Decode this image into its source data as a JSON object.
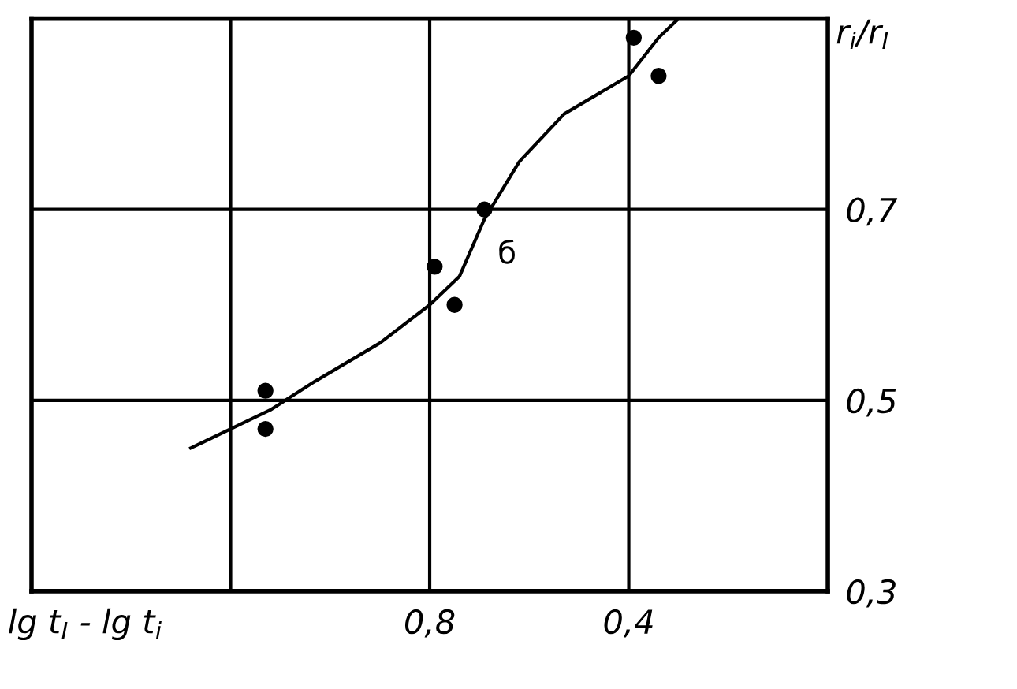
{
  "chart_data": {
    "type": "scatter",
    "xlabel": "lg t$_{I}$ - lg t$_{i}$",
    "ylabel": "r$_{i}$/r$_{I}$",
    "series": [
      {
        "color": "#000000",
        "marker": "circle",
        "x": [
          1.13,
          1.13,
          0.79,
          0.75,
          0.69,
          0.39,
          0.34
        ],
        "values": [
          0.51,
          0.47,
          0.64,
          0.6,
          0.7,
          0.88,
          0.84
        ]
      },
      {
        "type": "line",
        "color": "#000000",
        "marker": "none",
        "line_style": "solid",
        "x": [
          1.28,
          1.2,
          1.12,
          1.03,
          0.9,
          0.8,
          0.74,
          0.69,
          0.62,
          0.53,
          0.4,
          0.34,
          0.3
        ],
        "values": [
          0.45,
          0.47,
          0.49,
          0.52,
          0.56,
          0.6,
          0.63,
          0.69,
          0.75,
          0.8,
          0.84,
          0.88,
          0.9
        ]
      }
    ],
    "annotations": [
      {
        "text": "б",
        "x": 0.69,
        "y": 0.7
      }
    ],
    "xlim": [
      1.6,
      0.0
    ],
    "ylim": [
      0.3,
      0.9
    ],
    "xticks": [
      {
        "value": 1.2,
        "label": null
      },
      {
        "value": 0.8,
        "label": "0,8"
      },
      {
        "value": 0.4,
        "label": "0,4"
      }
    ],
    "yticks": [
      {
        "value": 0.3,
        "label": "0,3"
      },
      {
        "value": 0.5,
        "label": "0,5"
      },
      {
        "value": 0.7,
        "label": "0,7"
      }
    ],
    "grid": true
  }
}
